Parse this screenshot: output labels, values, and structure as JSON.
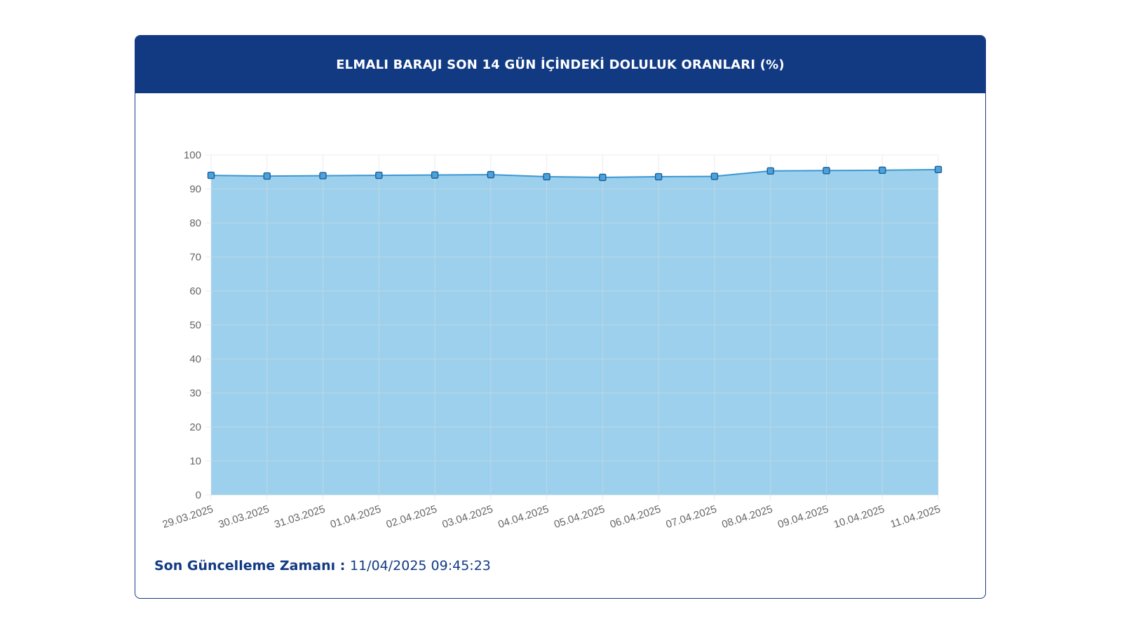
{
  "header": {
    "title": "ELMALI BARAJI SON 14 GÜN İÇİNDEKİ DOLULUK ORANLARI (%)"
  },
  "footer": {
    "label": "Son Güncelleme Zamanı",
    "separator": " : ",
    "value": "11/04/2025 09:45:23"
  },
  "colors": {
    "header_bg": "#113a83",
    "area_fill": "#9dd0ec",
    "line": "#3c97d3",
    "marker_fill": "#4aa3de",
    "marker_stroke": "#1f5f95",
    "grid": "#d6dde3"
  },
  "chart_data": {
    "type": "area",
    "title": "ELMALI BARAJI SON 14 GÜN İÇİNDEKİ DOLULUK ORANLARI (%)",
    "categories": [
      "29.03.2025",
      "30.03.2025",
      "31.03.2025",
      "01.04.2025",
      "02.04.2025",
      "03.04.2025",
      "04.04.2025",
      "05.04.2025",
      "06.04.2025",
      "07.04.2025",
      "08.04.2025",
      "09.04.2025",
      "10.04.2025",
      "11.04.2025"
    ],
    "values": [
      94.0,
      93.8,
      93.9,
      94.0,
      94.1,
      94.2,
      93.6,
      93.4,
      93.6,
      93.7,
      95.3,
      95.4,
      95.5,
      95.7
    ],
    "ylim": [
      0,
      100
    ],
    "yticks": [
      0,
      10,
      20,
      30,
      40,
      50,
      60,
      70,
      80,
      90,
      100
    ],
    "xlabel": "",
    "ylabel": "",
    "grid": true,
    "legend": "none"
  }
}
